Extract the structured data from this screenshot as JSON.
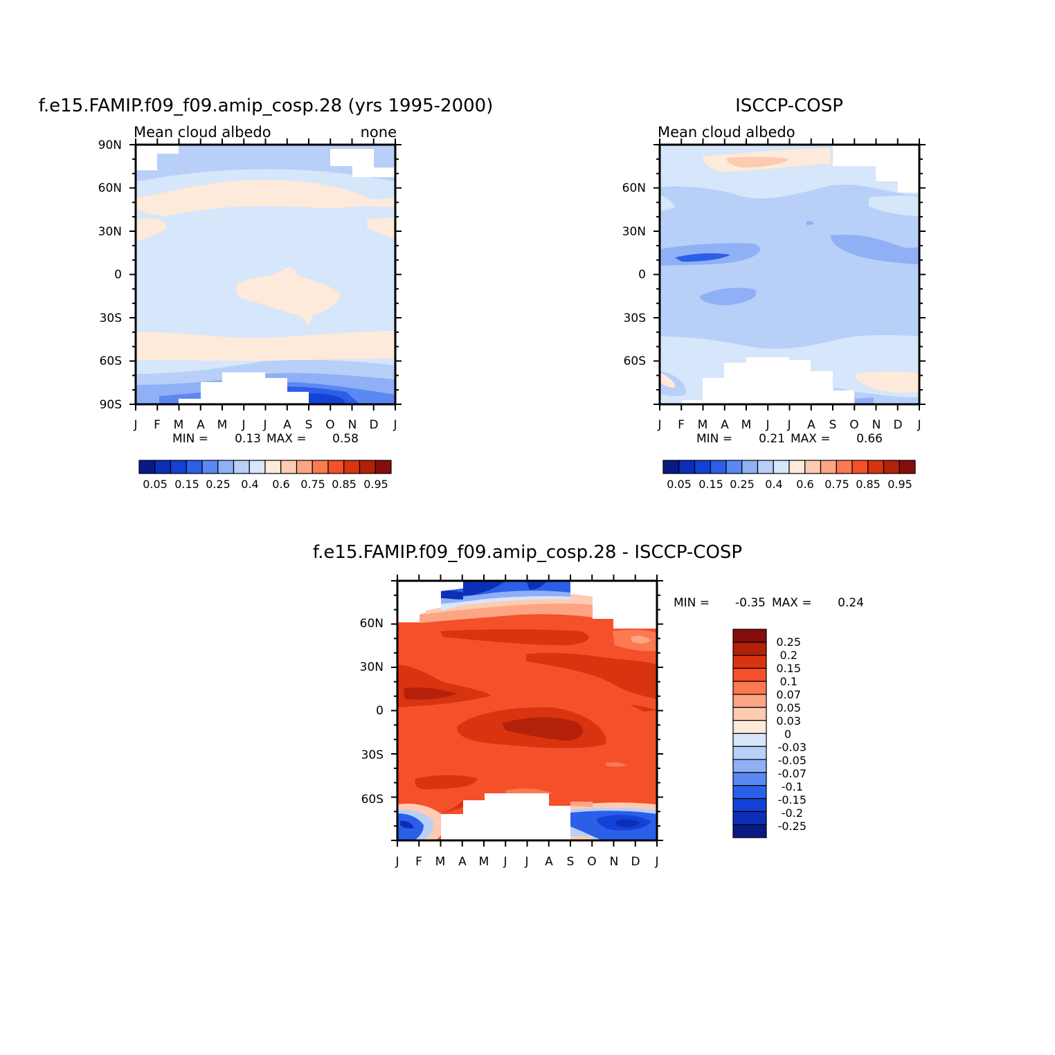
{
  "chart_data": [
    {
      "type": "heatmap",
      "title": "f.e15.FAMIP.f09_f09.amip_cosp.28 (yrs 1995-2000)",
      "left_label": "Mean cloud albedo",
      "right_label": "none",
      "x_ticks": [
        "J",
        "F",
        "M",
        "A",
        "M",
        "J",
        "J",
        "A",
        "S",
        "O",
        "N",
        "D",
        "J"
      ],
      "y_ticks": [
        "90N",
        "60N",
        "30N",
        "0",
        "30S",
        "60S",
        "90S"
      ],
      "min_label": "MIN =",
      "min_value": "0.13",
      "max_label": "MAX =",
      "max_value": "0.58",
      "colorbar_labels": [
        "0.05",
        "0.15",
        "0.25",
        "0.4",
        "0.6",
        "0.75",
        "0.85",
        "0.95"
      ],
      "colorbar_colors": [
        "#0a1a85",
        "#0c2fb8",
        "#1242d6",
        "#2b5fe8",
        "#5b88f2",
        "#8fb0f5",
        "#b8cff8",
        "#d6e6fb",
        "#feeada",
        "#fdcbb2",
        "#fca584",
        "#fb7a52",
        "#f4502a",
        "#d8340f",
        "#b3210a",
        "#850d0d"
      ],
      "ylim": [
        -90,
        90
      ]
    },
    {
      "type": "heatmap",
      "title": "ISCCP-COSP",
      "left_label": "Mean cloud albedo",
      "x_ticks": [
        "J",
        "F",
        "M",
        "A",
        "M",
        "J",
        "J",
        "A",
        "S",
        "O",
        "N",
        "D",
        "J"
      ],
      "y_ticks": [
        "60N",
        "30N",
        "0",
        "30S",
        "60S"
      ],
      "min_label": "MIN =",
      "min_value": "0.21",
      "max_label": "MAX =",
      "max_value": "0.66",
      "colorbar_labels": [
        "0.05",
        "0.15",
        "0.25",
        "0.4",
        "0.6",
        "0.75",
        "0.85",
        "0.95"
      ],
      "colorbar_colors": [
        "#0a1a85",
        "#0c2fb8",
        "#1242d6",
        "#2b5fe8",
        "#5b88f2",
        "#8fb0f5",
        "#b8cff8",
        "#d6e6fb",
        "#feeada",
        "#fdcbb2",
        "#fca584",
        "#fb7a52",
        "#f4502a",
        "#d8340f",
        "#b3210a",
        "#850d0d"
      ],
      "ylim": [
        -90,
        90
      ]
    },
    {
      "type": "heatmap",
      "title": "f.e15.FAMIP.f09_f09.amip_cosp.28 - ISCCP-COSP",
      "x_ticks": [
        "J",
        "F",
        "M",
        "A",
        "M",
        "J",
        "J",
        "A",
        "S",
        "O",
        "N",
        "D",
        "J"
      ],
      "y_ticks": [
        "60N",
        "30N",
        "0",
        "30S",
        "60S"
      ],
      "min_label": "MIN =",
      "min_value": "-0.35",
      "max_label": "MAX =",
      "max_value": "0.24",
      "colorbar_labels": [
        "0.25",
        "0.2",
        "0.15",
        "0.1",
        "0.07",
        "0.05",
        "0.03",
        "0",
        "-0.03",
        "-0.05",
        "-0.07",
        "-0.1",
        "-0.15",
        "-0.2",
        "-0.25"
      ],
      "colorbar_colors": [
        "#850d0d",
        "#b3210a",
        "#d8340f",
        "#f4502a",
        "#fb7a52",
        "#fca584",
        "#fdcbb2",
        "#feeada",
        "#d6e6fb",
        "#b8cff8",
        "#8fb0f5",
        "#5b88f2",
        "#2b5fe8",
        "#1242d6",
        "#0c2fb8",
        "#0a1a85"
      ],
      "ylim": [
        -90,
        90
      ]
    }
  ]
}
